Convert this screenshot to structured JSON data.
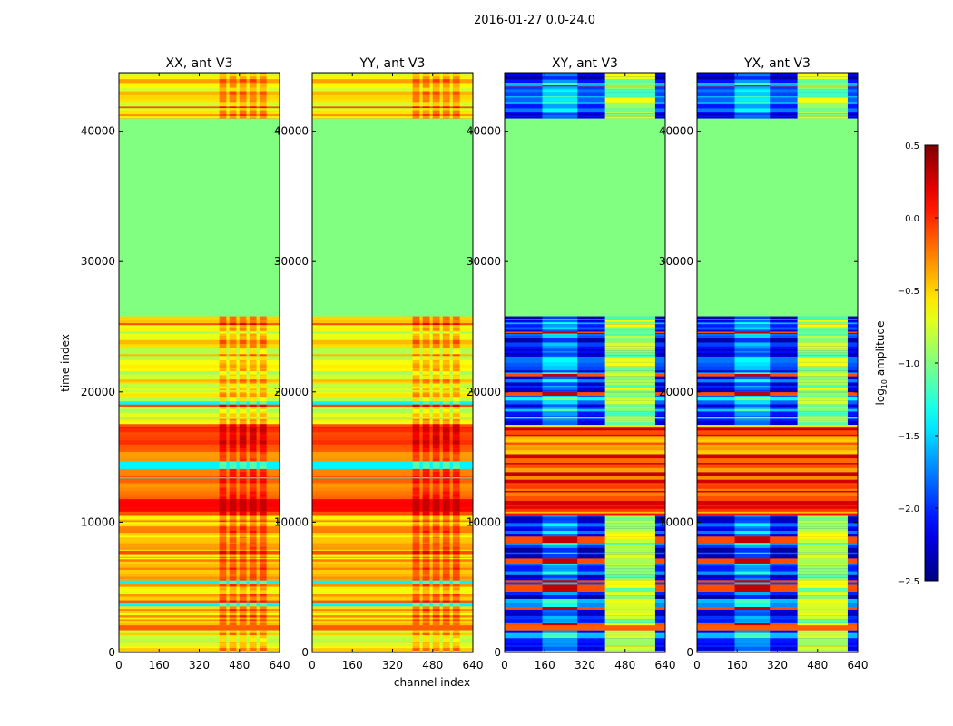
{
  "chart_data": {
    "type": "heatmap",
    "suptitle": "2016-01-27 0.0-24.0",
    "xlabel": "channel index",
    "ylabel": "time index",
    "xlim": [
      0,
      640
    ],
    "ylim": [
      0,
      44500
    ],
    "xticks": [
      "0",
      "160",
      "320",
      "480",
      "640"
    ],
    "yticks": [
      "0",
      "10000",
      "20000",
      "30000",
      "40000"
    ],
    "colorbar": {
      "label": "log10 amplitude",
      "label_base": "log",
      "label_sub": "10",
      "label_rest": " amplitude",
      "range": [
        -2.5,
        0.5
      ],
      "ticks": [
        "0.5",
        "0.0",
        "−0.5",
        "−1.0",
        "−1.5",
        "−2.0",
        "−2.5"
      ],
      "colormap": "jet"
    },
    "panels": [
      {
        "title": "XX, ant V3",
        "kind": "parallel"
      },
      {
        "title": "YY, ant V3",
        "kind": "parallel"
      },
      {
        "title": "XY, ant V3",
        "kind": "cross"
      },
      {
        "title": "YX, ant V3",
        "kind": "cross"
      }
    ],
    "time_bands": [
      {
        "start": 0,
        "end": 1700,
        "parallel": -0.6,
        "cross": -1.8,
        "striped": true
      },
      {
        "start": 1700,
        "end": 2100,
        "parallel": -0.15,
        "cross": -0.15,
        "striped": false
      },
      {
        "start": 2100,
        "end": 10500,
        "parallel": -0.45,
        "cross": -2.0,
        "striped": true
      },
      {
        "start": 10500,
        "end": 17500,
        "parallel": -0.1,
        "cross": -0.1,
        "striped": true
      },
      {
        "start": 17500,
        "end": 20000,
        "parallel": -0.75,
        "cross": -1.8,
        "striped": true
      },
      {
        "start": 20000,
        "end": 25800,
        "parallel": -0.65,
        "cross": -2.0,
        "striped": true
      },
      {
        "start": 25800,
        "end": 41000,
        "parallel": -1.0,
        "cross": -1.0,
        "striped": false
      },
      {
        "start": 41000,
        "end": 44500,
        "parallel": -0.55,
        "cross": -2.0,
        "striped": true
      }
    ],
    "bright_channel_range": [
      400,
      600
    ]
  }
}
